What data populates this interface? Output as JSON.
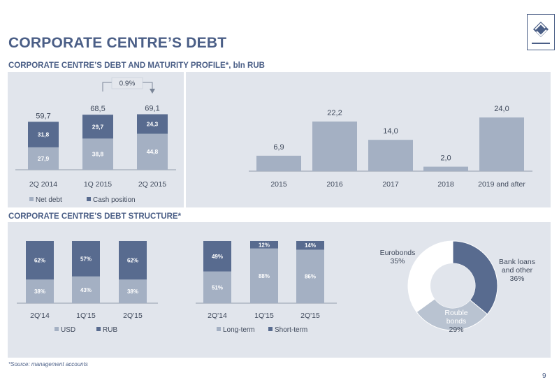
{
  "page": {
    "title": "CORPORATE CENTRE’S DEBT",
    "section1_title": "CORPORATE CENTRE’S DEBT AND MATURITY PROFILE*, bln RUB",
    "section2_title": "CORPORATE CENTRE’S DEBT STRUCTURE*",
    "source": "*Source: management accounts",
    "page_number": "9"
  },
  "colors": {
    "dark": "#586b8f",
    "light": "#a4b0c3",
    "lighter": "#b9c3d1",
    "white": "#ffffff",
    "text": "#4a5e86",
    "axis": "#7a8597"
  },
  "chart_data": [
    {
      "type": "bar",
      "stacked": true,
      "categories": [
        "2Q 2014",
        "1Q 2015",
        "2Q 2015"
      ],
      "series": [
        {
          "name": "Net debt",
          "values": [
            27.9,
            38.8,
            44.8
          ],
          "labels": [
            "27,9",
            "38,8",
            "44,8"
          ]
        },
        {
          "name": "Cash position",
          "values": [
            31.8,
            29.7,
            24.3
          ],
          "labels": [
            "31,8",
            "29,7",
            "24,3"
          ]
        }
      ],
      "totals": [
        "59,7",
        "68,5",
        "69,1"
      ],
      "annotation": "0.9%",
      "legend_position": "bottom"
    },
    {
      "type": "bar",
      "categories": [
        "2015",
        "2016",
        "2017",
        "2018",
        "2019 and after"
      ],
      "values": [
        6.9,
        22.2,
        14.0,
        2.0,
        24.0
      ],
      "labels": [
        "6,9",
        "22,2",
        "14,0",
        "2,0",
        "24,0"
      ]
    },
    {
      "type": "bar",
      "stacked": true,
      "percent": true,
      "categories": [
        "2Q'14",
        "1Q'15",
        "2Q'15"
      ],
      "series": [
        {
          "name": "USD",
          "values": [
            38,
            43,
            38
          ],
          "labels": [
            "38%",
            "43%",
            "38%"
          ]
        },
        {
          "name": "RUB",
          "values": [
            62,
            57,
            62
          ],
          "labels": [
            "62%",
            "57%",
            "62%"
          ]
        }
      ],
      "legend_position": "bottom"
    },
    {
      "type": "bar",
      "stacked": true,
      "percent": true,
      "categories": [
        "2Q'14",
        "1Q'15",
        "2Q'15"
      ],
      "series": [
        {
          "name": "Long-term",
          "values": [
            51,
            88,
            86
          ],
          "labels": [
            "51%",
            "88%",
            "86%"
          ]
        },
        {
          "name": "Short-term",
          "values": [
            49,
            12,
            14
          ],
          "labels": [
            "49%",
            "12%",
            "14%"
          ]
        }
      ],
      "legend_position": "bottom"
    },
    {
      "type": "pie",
      "donut": true,
      "slices": [
        {
          "name": "Bank loans and other",
          "label_lines": [
            "Bank loans",
            "and other",
            "36%"
          ],
          "value": 36
        },
        {
          "name": "Rouble bonds",
          "label_lines": [
            "Rouble",
            "bonds",
            "29%"
          ],
          "value": 29
        },
        {
          "name": "Eurobonds",
          "label_lines": [
            "Eurobonds",
            "35%"
          ],
          "value": 35
        }
      ]
    }
  ]
}
